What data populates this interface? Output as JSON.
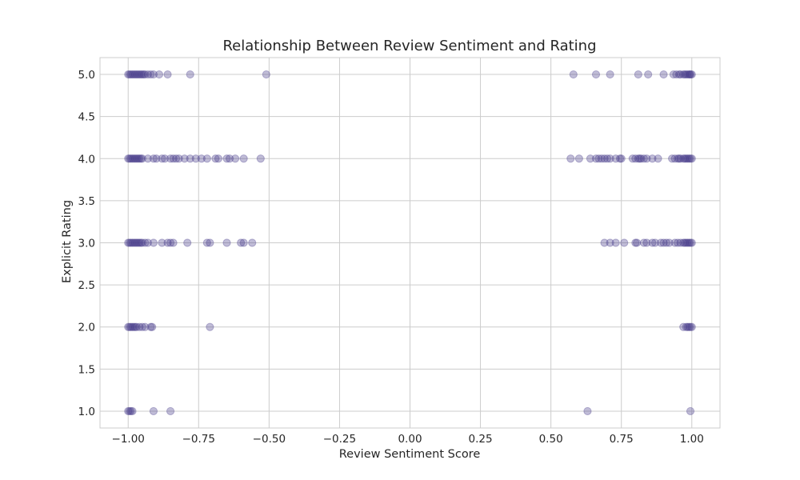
{
  "chart_data": {
    "type": "scatter",
    "title": "Relationship Between Review Sentiment and Rating",
    "xlabel": "Review Sentiment Score",
    "ylabel": "Explicit Rating",
    "xlim": [
      -1.1,
      1.1
    ],
    "ylim": [
      0.8,
      5.2
    ],
    "x_ticks": [
      -1.0,
      -0.75,
      -0.5,
      -0.25,
      0.0,
      0.25,
      0.5,
      0.75,
      1.0
    ],
    "x_tick_labels": [
      "−1.00",
      "−0.75",
      "−0.50",
      "−0.25",
      "0.00",
      "0.25",
      "0.50",
      "0.75",
      "1.00"
    ],
    "y_ticks": [
      1.0,
      1.5,
      2.0,
      2.5,
      3.0,
      3.5,
      4.0,
      4.5,
      5.0
    ],
    "y_tick_labels": [
      "1.0",
      "1.5",
      "2.0",
      "2.5",
      "3.0",
      "3.5",
      "4.0",
      "4.5",
      "5.0"
    ],
    "grid": true,
    "legend": "none",
    "marker_color": "#4b3f8c",
    "marker_alpha": 0.35,
    "series": [
      {
        "points": [
          [
            -1.0,
            5
          ],
          [
            -0.995,
            5
          ],
          [
            -0.99,
            5
          ],
          [
            -0.985,
            5
          ],
          [
            -0.98,
            5
          ],
          [
            -0.975,
            5
          ],
          [
            -0.97,
            5
          ],
          [
            -0.965,
            5
          ],
          [
            -0.96,
            5
          ],
          [
            -0.955,
            5
          ],
          [
            -0.95,
            5
          ],
          [
            -0.945,
            5
          ],
          [
            -0.94,
            5
          ],
          [
            -0.93,
            5
          ],
          [
            -0.92,
            5
          ],
          [
            -0.91,
            5
          ],
          [
            -0.89,
            5
          ],
          [
            -0.86,
            5
          ],
          [
            -0.78,
            5
          ],
          [
            -0.51,
            5
          ],
          [
            0.58,
            5
          ],
          [
            0.66,
            5
          ],
          [
            0.71,
            5
          ],
          [
            0.81,
            5
          ],
          [
            0.845,
            5
          ],
          [
            0.9,
            5
          ],
          [
            0.935,
            5
          ],
          [
            0.945,
            5
          ],
          [
            0.955,
            5
          ],
          [
            0.96,
            5
          ],
          [
            0.97,
            5
          ],
          [
            0.975,
            5
          ],
          [
            0.98,
            5
          ],
          [
            0.985,
            5
          ],
          [
            0.99,
            5
          ],
          [
            0.993,
            5
          ],
          [
            0.996,
            5
          ],
          [
            1.0,
            5
          ],
          [
            -1.0,
            4
          ],
          [
            -0.995,
            4
          ],
          [
            -0.99,
            4
          ],
          [
            -0.985,
            4
          ],
          [
            -0.98,
            4
          ],
          [
            -0.975,
            4
          ],
          [
            -0.97,
            4
          ],
          [
            -0.965,
            4
          ],
          [
            -0.96,
            4
          ],
          [
            -0.955,
            4
          ],
          [
            -0.95,
            4
          ],
          [
            -0.93,
            4
          ],
          [
            -0.91,
            4
          ],
          [
            -0.9,
            4
          ],
          [
            -0.88,
            4
          ],
          [
            -0.87,
            4
          ],
          [
            -0.85,
            4
          ],
          [
            -0.84,
            4
          ],
          [
            -0.83,
            4
          ],
          [
            -0.82,
            4
          ],
          [
            -0.8,
            4
          ],
          [
            -0.78,
            4
          ],
          [
            -0.76,
            4
          ],
          [
            -0.74,
            4
          ],
          [
            -0.72,
            4
          ],
          [
            -0.69,
            4
          ],
          [
            -0.68,
            4
          ],
          [
            -0.65,
            4
          ],
          [
            -0.64,
            4
          ],
          [
            -0.62,
            4
          ],
          [
            -0.59,
            4
          ],
          [
            -0.53,
            4
          ],
          [
            0.57,
            4
          ],
          [
            0.6,
            4
          ],
          [
            0.64,
            4
          ],
          [
            0.66,
            4
          ],
          [
            0.67,
            4
          ],
          [
            0.68,
            4
          ],
          [
            0.69,
            4
          ],
          [
            0.7,
            4
          ],
          [
            0.71,
            4
          ],
          [
            0.73,
            4
          ],
          [
            0.745,
            4
          ],
          [
            0.75,
            4
          ],
          [
            0.79,
            4
          ],
          [
            0.8,
            4
          ],
          [
            0.81,
            4
          ],
          [
            0.815,
            4
          ],
          [
            0.82,
            4
          ],
          [
            0.83,
            4
          ],
          [
            0.84,
            4
          ],
          [
            0.86,
            4
          ],
          [
            0.88,
            4
          ],
          [
            0.93,
            4
          ],
          [
            0.94,
            4
          ],
          [
            0.95,
            4
          ],
          [
            0.955,
            4
          ],
          [
            0.96,
            4
          ],
          [
            0.97,
            4
          ],
          [
            0.975,
            4
          ],
          [
            0.98,
            4
          ],
          [
            0.985,
            4
          ],
          [
            0.99,
            4
          ],
          [
            0.995,
            4
          ],
          [
            1.0,
            4
          ],
          [
            -1.0,
            3
          ],
          [
            -0.995,
            3
          ],
          [
            -0.99,
            3
          ],
          [
            -0.985,
            3
          ],
          [
            -0.98,
            3
          ],
          [
            -0.975,
            3
          ],
          [
            -0.97,
            3
          ],
          [
            -0.965,
            3
          ],
          [
            -0.96,
            3
          ],
          [
            -0.955,
            3
          ],
          [
            -0.95,
            3
          ],
          [
            -0.94,
            3
          ],
          [
            -0.93,
            3
          ],
          [
            -0.91,
            3
          ],
          [
            -0.88,
            3
          ],
          [
            -0.86,
            3
          ],
          [
            -0.85,
            3
          ],
          [
            -0.84,
            3
          ],
          [
            -0.79,
            3
          ],
          [
            -0.72,
            3
          ],
          [
            -0.71,
            3
          ],
          [
            -0.65,
            3
          ],
          [
            -0.6,
            3
          ],
          [
            -0.59,
            3
          ],
          [
            -0.56,
            3
          ],
          [
            0.69,
            3
          ],
          [
            0.71,
            3
          ],
          [
            0.73,
            3
          ],
          [
            0.76,
            3
          ],
          [
            0.8,
            3
          ],
          [
            0.805,
            3
          ],
          [
            0.83,
            3
          ],
          [
            0.84,
            3
          ],
          [
            0.86,
            3
          ],
          [
            0.87,
            3
          ],
          [
            0.89,
            3
          ],
          [
            0.9,
            3
          ],
          [
            0.91,
            3
          ],
          [
            0.92,
            3
          ],
          [
            0.94,
            3
          ],
          [
            0.95,
            3
          ],
          [
            0.96,
            3
          ],
          [
            0.97,
            3
          ],
          [
            0.975,
            3
          ],
          [
            0.98,
            3
          ],
          [
            0.985,
            3
          ],
          [
            0.99,
            3
          ],
          [
            0.995,
            3
          ],
          [
            1.0,
            3
          ],
          [
            -1.0,
            2
          ],
          [
            -0.995,
            2
          ],
          [
            -0.99,
            2
          ],
          [
            -0.985,
            2
          ],
          [
            -0.98,
            2
          ],
          [
            -0.975,
            2
          ],
          [
            -0.97,
            2
          ],
          [
            -0.96,
            2
          ],
          [
            -0.95,
            2
          ],
          [
            -0.94,
            2
          ],
          [
            -0.92,
            2
          ],
          [
            -0.915,
            2
          ],
          [
            -0.71,
            2
          ],
          [
            0.97,
            2
          ],
          [
            0.98,
            2
          ],
          [
            0.985,
            2
          ],
          [
            0.99,
            2
          ],
          [
            0.995,
            2
          ],
          [
            1.0,
            2
          ],
          [
            -1.0,
            1
          ],
          [
            -0.995,
            1
          ],
          [
            -0.99,
            1
          ],
          [
            -0.985,
            1
          ],
          [
            -0.91,
            1
          ],
          [
            -0.85,
            1
          ],
          [
            0.63,
            1
          ],
          [
            0.995,
            1
          ]
        ]
      }
    ]
  }
}
